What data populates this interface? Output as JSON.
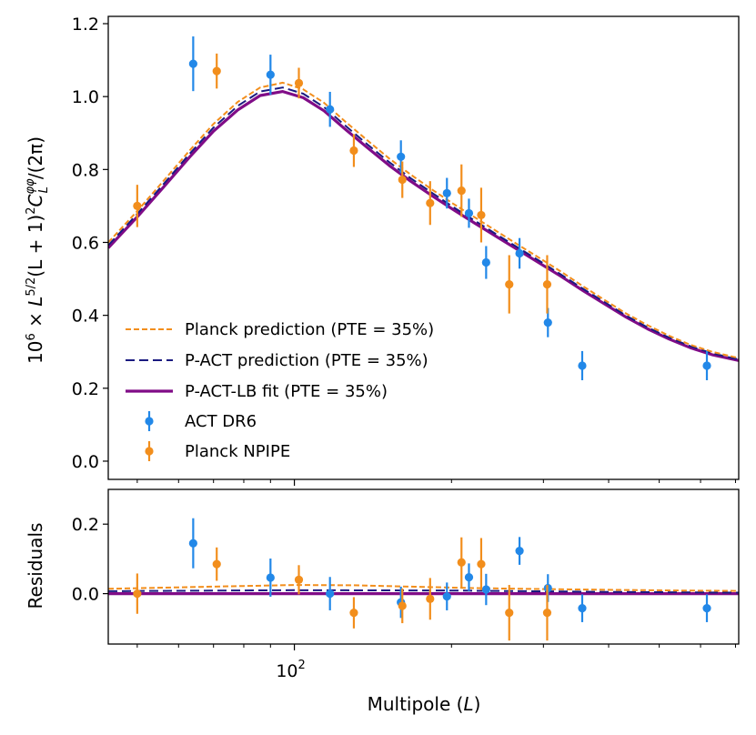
{
  "chart_data": [
    {
      "type": "line",
      "panel": "top",
      "ylabel": "10^6 × L^{5/2}(L+1)^2 C_L^{φφ}/(2π)",
      "ylabel_parts": {
        "base": "10",
        "exp": "6",
        "mid": " × L",
        "exp2": "5/2",
        "mid2": "(L + 1)",
        "exp3": "2",
        "c": "C",
        "sub": "L",
        "sup": "φφ",
        "tail": "/(2π)"
      },
      "xscale": "log",
      "xlim": [
        44,
        710
      ],
      "ylim": [
        -0.05,
        1.22
      ],
      "yticks": [
        0.0,
        0.2,
        0.4,
        0.6,
        0.8,
        1.0,
        1.2
      ],
      "ytick_labels": [
        "0.0",
        "0.2",
        "0.4",
        "0.6",
        "0.8",
        "1.0",
        "1.2"
      ],
      "legend_position": "lower-left",
      "series": [
        {
          "name": "Planck prediction (PTE = 35%)",
          "style": "dashed",
          "color": "#f28e1c",
          "x": [
            44,
            50,
            56,
            63,
            70,
            78,
            86,
            95,
            104,
            114,
            125,
            138,
            152,
            167,
            184,
            202,
            222,
            244,
            268,
            295,
            325,
            357,
            393,
            432,
            475,
            522,
            574,
            631,
            694,
            710
          ],
          "y": [
            0.6,
            0.686,
            0.767,
            0.852,
            0.925,
            0.986,
            1.025,
            1.038,
            1.02,
            0.983,
            0.932,
            0.88,
            0.83,
            0.786,
            0.744,
            0.705,
            0.668,
            0.631,
            0.594,
            0.557,
            0.519,
            0.48,
            0.442,
            0.405,
            0.373,
            0.344,
            0.319,
            0.3,
            0.286,
            0.283
          ]
        },
        {
          "name": "P-ACT prediction (PTE = 35%)",
          "style": "dashed",
          "color": "#1a1a80",
          "x": [
            44,
            50,
            56,
            63,
            70,
            78,
            86,
            95,
            104,
            114,
            125,
            138,
            152,
            167,
            184,
            202,
            222,
            244,
            268,
            295,
            325,
            357,
            393,
            432,
            475,
            522,
            574,
            631,
            694,
            710
          ],
          "y": [
            0.592,
            0.678,
            0.758,
            0.843,
            0.915,
            0.975,
            1.014,
            1.025,
            1.008,
            0.971,
            0.921,
            0.869,
            0.82,
            0.776,
            0.735,
            0.696,
            0.659,
            0.622,
            0.586,
            0.549,
            0.511,
            0.473,
            0.436,
            0.399,
            0.367,
            0.339,
            0.315,
            0.296,
            0.282,
            0.279
          ]
        },
        {
          "name": "P-ACT-LB fit (PTE = 35%)",
          "style": "solid",
          "color": "#800c87",
          "x": [
            44,
            50,
            56,
            63,
            70,
            78,
            86,
            95,
            104,
            114,
            125,
            138,
            152,
            167,
            184,
            202,
            222,
            244,
            268,
            295,
            325,
            357,
            393,
            432,
            475,
            522,
            574,
            631,
            694,
            710
          ],
          "y": [
            0.585,
            0.67,
            0.75,
            0.834,
            0.905,
            0.964,
            1.003,
            1.014,
            0.997,
            0.961,
            0.911,
            0.86,
            0.811,
            0.768,
            0.727,
            0.689,
            0.652,
            0.616,
            0.58,
            0.543,
            0.506,
            0.468,
            0.431,
            0.395,
            0.363,
            0.335,
            0.311,
            0.292,
            0.279,
            0.276
          ]
        },
        {
          "name": "ACT DR6",
          "style": "errorbar",
          "color": "#2288e8",
          "x": [
            64,
            90,
            117,
            160,
            196,
            216,
            233,
            270,
            306,
            356,
            617
          ],
          "y": [
            1.09,
            1.06,
            0.965,
            0.835,
            0.735,
            0.68,
            0.545,
            0.57,
            0.38,
            0.262,
            0.262
          ],
          "yerr": [
            0.075,
            0.055,
            0.048,
            0.045,
            0.042,
            0.04,
            0.045,
            0.042,
            0.04,
            0.04,
            0.04
          ]
        },
        {
          "name": "Planck NPIPE",
          "style": "errorbar",
          "color": "#f28e1c",
          "x": [
            50,
            71,
            102,
            130,
            161,
            182,
            209,
            228,
            258,
            305
          ],
          "y": [
            0.7,
            1.07,
            1.037,
            0.852,
            0.772,
            0.708,
            0.742,
            0.675,
            0.485,
            0.485
          ],
          "yerr": [
            0.058,
            0.048,
            0.042,
            0.045,
            0.05,
            0.06,
            0.072,
            0.075,
            0.08,
            0.08
          ]
        }
      ]
    },
    {
      "type": "line",
      "panel": "bottom",
      "xlabel": "Multipole (L)",
      "xlabel_parts": {
        "main": "Multipole (",
        "var": "L",
        "end": ")"
      },
      "ylabel": "Residuals",
      "xscale": "log",
      "xlim": [
        44,
        710
      ],
      "ylim": [
        -0.145,
        0.3
      ],
      "yticks": [
        0.0,
        0.2
      ],
      "ytick_labels": [
        "0.0",
        "0.2"
      ],
      "xtick_major": [
        100
      ],
      "xtick_labels": [
        {
          "base": "10",
          "exp": "2"
        }
      ],
      "series": [
        {
          "name": "Planck prediction (PTE = 35%)",
          "style": "dashed",
          "color": "#f28e1c",
          "x": [
            44,
            60,
            80,
            100,
            130,
            170,
            220,
            300,
            400,
            550,
            710
          ],
          "y": [
            0.014,
            0.018,
            0.022,
            0.025,
            0.024,
            0.02,
            0.016,
            0.013,
            0.011,
            0.009,
            0.008
          ]
        },
        {
          "name": "P-ACT prediction (PTE = 35%)",
          "style": "dashed",
          "color": "#1a1a80",
          "x": [
            44,
            100,
            200,
            400,
            710
          ],
          "y": [
            0.007,
            0.01,
            0.009,
            0.005,
            0.003
          ]
        },
        {
          "name": "P-ACT-LB fit (PTE = 35%)",
          "style": "solid",
          "color": "#800c87",
          "x": [
            44,
            710
          ],
          "y": [
            0.0,
            0.0
          ]
        },
        {
          "name": "ACT DR6",
          "style": "errorbar",
          "color": "#2288e8",
          "x": [
            64,
            90,
            117,
            160,
            196,
            216,
            233,
            270,
            306,
            356,
            617
          ],
          "y": [
            0.145,
            0.046,
            0.0,
            -0.025,
            -0.008,
            0.047,
            0.012,
            0.123,
            0.016,
            -0.042,
            -0.042
          ],
          "yerr": [
            0.072,
            0.055,
            0.048,
            0.045,
            0.04,
            0.04,
            0.045,
            0.04,
            0.04,
            0.04,
            0.04
          ]
        },
        {
          "name": "Planck NPIPE",
          "style": "errorbar",
          "color": "#f28e1c",
          "x": [
            50,
            71,
            102,
            130,
            161,
            182,
            209,
            228,
            258,
            305
          ],
          "y": [
            0.0,
            0.085,
            0.04,
            -0.055,
            -0.035,
            -0.015,
            0.09,
            0.085,
            -0.055,
            -0.055
          ],
          "yerr": [
            0.058,
            0.048,
            0.042,
            0.045,
            0.05,
            0.06,
            0.072,
            0.075,
            0.08,
            0.08
          ]
        }
      ]
    }
  ]
}
